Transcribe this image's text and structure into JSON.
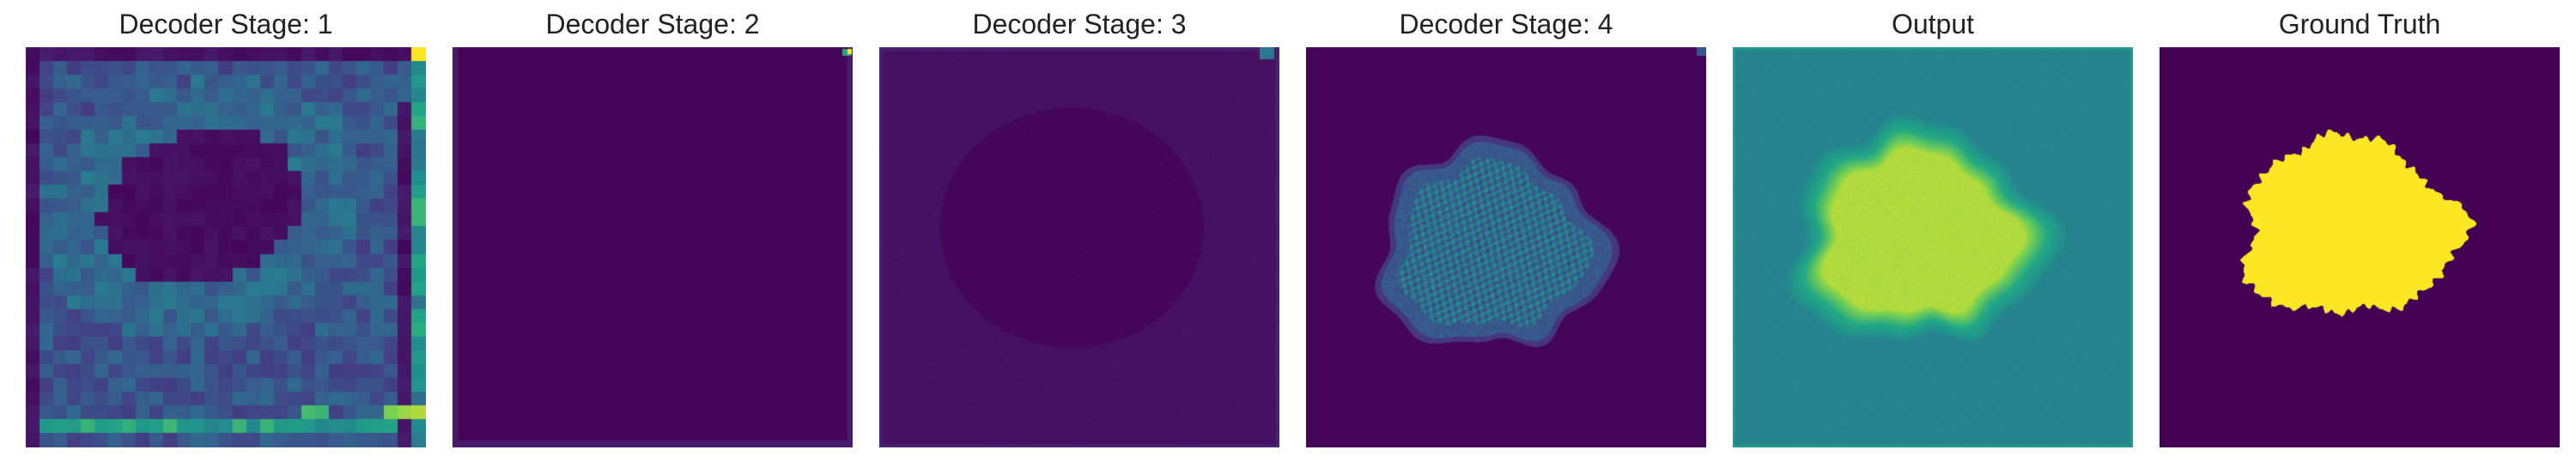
{
  "figure": {
    "panels": [
      {
        "title": "Decoder Stage: 1",
        "kind": "stage1"
      },
      {
        "title": "Decoder Stage: 2",
        "kind": "stage2"
      },
      {
        "title": "Decoder Stage: 3",
        "kind": "stage3"
      },
      {
        "title": "Decoder Stage: 4",
        "kind": "stage4"
      },
      {
        "title": "Output",
        "kind": "output"
      },
      {
        "title": "Ground Truth",
        "kind": "groundtruth"
      }
    ],
    "colormap": "viridis",
    "colors": {
      "viridis_low": "#440154",
      "viridis_mid": "#21918c",
      "viridis_high": "#fde725"
    }
  }
}
